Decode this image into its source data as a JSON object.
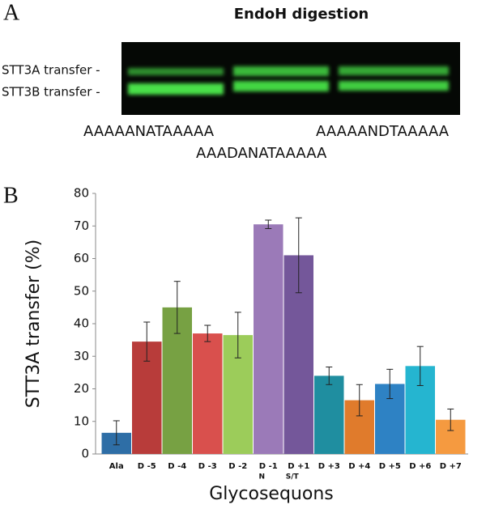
{
  "panel_a": {
    "label": "A",
    "title": "EndoH digestion",
    "band_labels": [
      "STT3A transfer -",
      "STT3B transfer -"
    ],
    "lane_labels": [
      "AAAAANATAAAAA",
      "AAADANATAAAAA",
      "AAAAANDTAAAAA"
    ]
  },
  "panel_b": {
    "label": "B"
  },
  "chart_data": {
    "type": "bar",
    "ylabel": "STT3A transfer (%)",
    "xlabel": "Glycosequons",
    "categories": [
      "Ala",
      "D -5",
      "D -4",
      "D -3",
      "D -2",
      "D -1",
      "D +1",
      "D +3",
      "D +4",
      "D +5",
      "D +6",
      "D +7"
    ],
    "sublabels": [
      null,
      null,
      null,
      null,
      null,
      "N",
      "S/T",
      null,
      null,
      null,
      null,
      null
    ],
    "values": [
      6.5,
      34.5,
      45,
      37,
      36.5,
      70.5,
      61,
      24,
      16.5,
      21.5,
      27,
      10.5
    ],
    "errors": [
      3.7,
      6,
      8,
      2.5,
      7,
      1.3,
      11.5,
      2.7,
      4.8,
      4.5,
      6,
      3.3
    ],
    "colors": [
      "#2e6ea6",
      "#b83c3a",
      "#77a143",
      "#d9504d",
      "#9ccc5a",
      "#9b7ab8",
      "#74579a",
      "#1f8ea0",
      "#e07b2c",
      "#2e82c4",
      "#25b5d0",
      "#f59a40"
    ],
    "ylim": [
      0,
      80
    ],
    "yticks": [
      0,
      10,
      20,
      30,
      40,
      50,
      60,
      70,
      80
    ]
  }
}
